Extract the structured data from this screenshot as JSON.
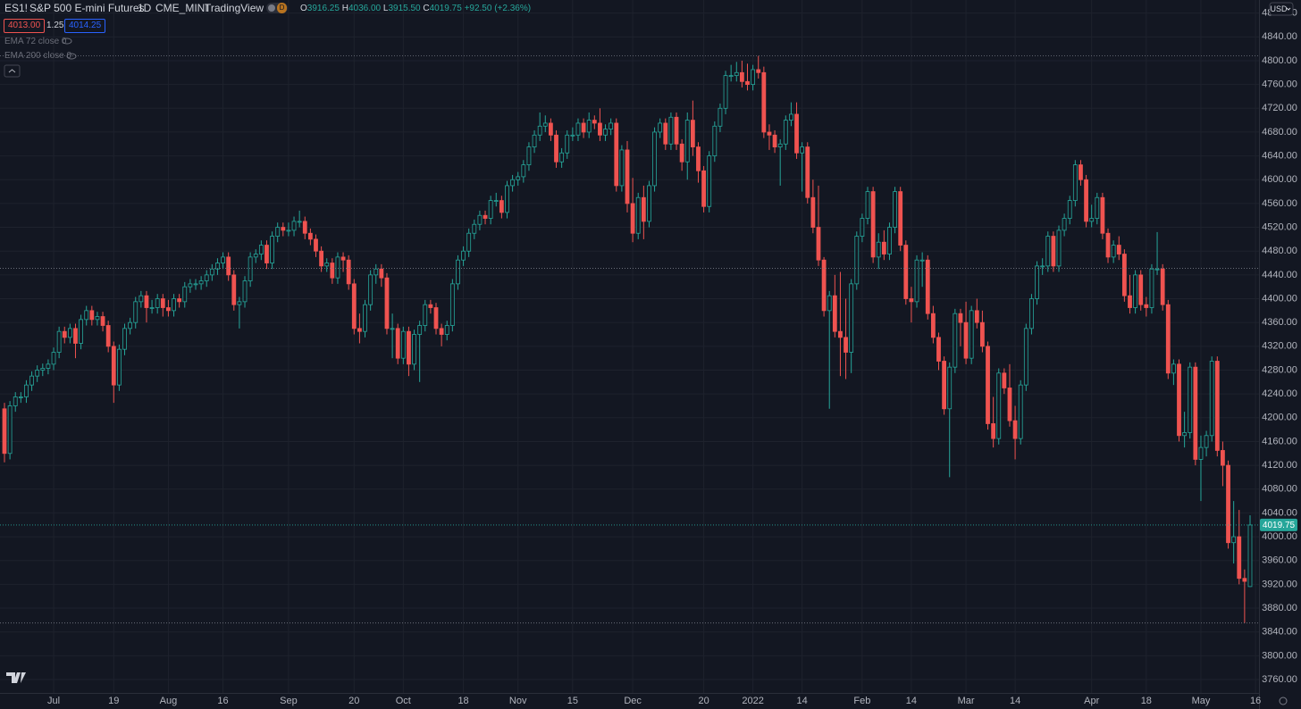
{
  "header": {
    "symbol": "ES1!",
    "name": "S&P 500 E-mini Futures",
    "interval": "1D",
    "exchange": "CME_MINI",
    "source": "TradingView",
    "badge": "D",
    "ohlc_labels": [
      "O",
      "H",
      "L",
      "C"
    ],
    "ohlc_values": [
      "3916.25",
      "4036.00",
      "3915.50",
      "4019.75"
    ],
    "change": "+92.50 (+2.36%)"
  },
  "trade_panel": {
    "sell": "4013.00",
    "spread": "1.25",
    "buy": "4014.25"
  },
  "indicators": [
    "EMA 72 close 0",
    "EMA 200 close 0"
  ],
  "currency": "USD",
  "chart_data": {
    "type": "candlestick",
    "up_color": "#26a69a",
    "down_color": "#ef5350",
    "hollow_up": true,
    "grid": true,
    "hline": 4451,
    "ylim": [
      3737.5,
      4902
    ],
    "yticks": [
      {
        "value": 3760,
        "label": "3760.00"
      },
      {
        "value": 3800,
        "label": "3800.00"
      },
      {
        "value": 3840,
        "label": "3840.00"
      },
      {
        "value": 3880,
        "label": "3880.00"
      },
      {
        "value": 3920,
        "label": "3920.00"
      },
      {
        "value": 3960,
        "label": "3960.00"
      },
      {
        "value": 4000,
        "label": "4000.00"
      },
      {
        "value": 4040,
        "label": "4040.00"
      },
      {
        "value": 4080,
        "label": "4080.00"
      },
      {
        "value": 4120,
        "label": "4120.00"
      },
      {
        "value": 4160,
        "label": "4160.00"
      },
      {
        "value": 4200,
        "label": "4200.00"
      },
      {
        "value": 4240,
        "label": "4240.00"
      },
      {
        "value": 4280,
        "label": "4280.00"
      },
      {
        "value": 4320,
        "label": "4320.00"
      },
      {
        "value": 4360,
        "label": "4360.00"
      },
      {
        "value": 4400,
        "label": "4400.00"
      },
      {
        "value": 4440,
        "label": "4440.00"
      },
      {
        "value": 4480,
        "label": "4480.00"
      },
      {
        "value": 4520,
        "label": "4520.00"
      },
      {
        "value": 4560,
        "label": "4560.00"
      },
      {
        "value": 4600,
        "label": "4600.00"
      },
      {
        "value": 4640,
        "label": "4640.00"
      },
      {
        "value": 4680,
        "label": "4680.00"
      },
      {
        "value": 4720,
        "label": "4720.00"
      },
      {
        "value": 4760,
        "label": "4760.00"
      },
      {
        "value": 4800,
        "label": "4800.00"
      },
      {
        "value": 4840,
        "label": "4840.00"
      },
      {
        "value": 4880,
        "label": "4880.00"
      }
    ],
    "categories": [
      null,
      null,
      null,
      null,
      null,
      null,
      null,
      null,
      null,
      "Jul",
      null,
      null,
      null,
      null,
      null,
      null,
      null,
      null,
      null,
      null,
      "19",
      null,
      null,
      null,
      null,
      null,
      null,
      null,
      null,
      null,
      "Aug",
      null,
      null,
      null,
      null,
      null,
      null,
      null,
      null,
      null,
      "16",
      null,
      null,
      null,
      null,
      null,
      null,
      null,
      null,
      null,
      null,
      null,
      "Sep",
      null,
      null,
      null,
      null,
      null,
      null,
      null,
      null,
      null,
      null,
      null,
      "20",
      null,
      null,
      null,
      null,
      null,
      null,
      null,
      null,
      "Oct",
      null,
      null,
      null,
      null,
      null,
      null,
      null,
      null,
      null,
      null,
      "18",
      null,
      null,
      null,
      null,
      null,
      null,
      null,
      null,
      null,
      "Nov",
      null,
      null,
      null,
      null,
      null,
      null,
      null,
      null,
      null,
      "15",
      null,
      null,
      null,
      null,
      null,
      null,
      null,
      null,
      null,
      null,
      "Dec",
      null,
      null,
      null,
      null,
      null,
      null,
      null,
      null,
      null,
      null,
      null,
      null,
      "20",
      null,
      null,
      null,
      null,
      null,
      null,
      null,
      null,
      "2022",
      null,
      null,
      null,
      null,
      null,
      null,
      null,
      null,
      "14",
      null,
      null,
      null,
      null,
      null,
      null,
      null,
      null,
      null,
      null,
      "Feb",
      null,
      null,
      null,
      null,
      null,
      null,
      null,
      null,
      "14",
      null,
      null,
      null,
      null,
      null,
      null,
      null,
      null,
      null,
      "Mar",
      null,
      null,
      null,
      null,
      null,
      null,
      null,
      null,
      "14",
      null,
      null,
      null,
      null,
      null,
      null,
      null,
      null,
      null,
      null,
      null,
      null,
      null,
      "Apr",
      null,
      null,
      null,
      null,
      null,
      null,
      null,
      null,
      null,
      "18",
      null,
      null,
      null,
      null,
      null,
      null,
      null,
      null,
      null,
      "May",
      null,
      null,
      null,
      null,
      null,
      null,
      null,
      null,
      null,
      "16"
    ],
    "open": [
      4215,
      4140,
      4220,
      4235,
      4235,
      4255,
      4270,
      4280,
      4283,
      4290,
      4310,
      4345,
      4335,
      4350,
      4325,
      4365,
      4380,
      4365,
      4370,
      4355,
      4320,
      4255,
      4315,
      4350,
      4360,
      4395,
      4405,
      4385,
      4385,
      4400,
      4385,
      4380,
      4400,
      4395,
      4420,
      4425,
      4425,
      4430,
      4440,
      4450,
      4460,
      4470,
      4440,
      4390,
      4395,
      4430,
      4470,
      4475,
      4490,
      4460,
      4505,
      4520,
      4515,
      4515,
      4530,
      4530,
      4510,
      4500,
      4480,
      4455,
      4460,
      4435,
      4470,
      4465,
      4425,
      4350,
      4345,
      4390,
      4440,
      4450,
      4435,
      4350,
      4350,
      4300,
      4345,
      4290,
      4340,
      4355,
      4390,
      4385,
      4350,
      4340,
      4355,
      4425,
      4465,
      4480,
      4510,
      4525,
      4540,
      4535,
      4565,
      4565,
      4545,
      4590,
      4600,
      4605,
      4625,
      4655,
      4675,
      4690,
      4695,
      4675,
      4630,
      4645,
      4675,
      4675,
      4695,
      4680,
      4700,
      4695,
      4675,
      4685,
      4695,
      4590,
      4650,
      4560,
      4510,
      4570,
      4530,
      4590,
      4680,
      4695,
      4660,
      4705,
      4660,
      4630,
      4700,
      4655,
      4615,
      4555,
      4640,
      4690,
      4720,
      4775,
      4775,
      4780,
      4765,
      4760,
      4785,
      4780,
      4680,
      4675,
      4655,
      4660,
      4700,
      4710,
      4645,
      4655,
      4570,
      4520,
      4465,
      4380,
      4405,
      4345,
      4335,
      4310,
      4425,
      4505,
      4535,
      4580,
      4470,
      4495,
      4475,
      4520,
      4580,
      4490,
      4400,
      4395,
      4465,
      4465,
      4375,
      4335,
      4295,
      4215,
      4285,
      4375,
      4360,
      4300,
      4380,
      4360,
      4320,
      4190,
      4165,
      4275,
      4250,
      4195,
      4165,
      4255,
      4350,
      4400,
      4455,
      4455,
      4505,
      4455,
      4515,
      4535,
      4565,
      4625,
      4600,
      4530,
      4535,
      4570,
      4510,
      4470,
      4490,
      4475,
      4405,
      4385,
      4440,
      4390,
      4385,
      4450,
      4450,
      4390,
      4275,
      4290,
      4170,
      4175,
      4285,
      4130,
      4150,
      4170,
      4295,
      4145,
      4120,
      3990,
      4000,
      3930,
      3916.25,
      null
    ],
    "high": [
      4225,
      4228,
      4243,
      4243,
      4263,
      4278,
      4288,
      4291,
      4298,
      4318,
      4353,
      4353,
      4358,
      4358,
      4373,
      4388,
      4388,
      4378,
      4378,
      4363,
      4328,
      4323,
      4358,
      4368,
      4403,
      4413,
      4413,
      4398,
      4408,
      4408,
      4398,
      4408,
      4408,
      4428,
      4433,
      4433,
      4438,
      4448,
      4458,
      4468,
      4478,
      4478,
      4448,
      4403,
      4438,
      4478,
      4483,
      4498,
      4498,
      4513,
      4528,
      4528,
      4528,
      4538,
      4548,
      4538,
      4518,
      4508,
      4488,
      4468,
      4468,
      4478,
      4478,
      4473,
      4433,
      4375,
      4398,
      4448,
      4458,
      4458,
      4443,
      4375,
      4358,
      4353,
      4353,
      4348,
      4363,
      4398,
      4398,
      4393,
      4358,
      4363,
      4433,
      4473,
      4488,
      4518,
      4533,
      4548,
      4548,
      4573,
      4578,
      4573,
      4598,
      4608,
      4613,
      4633,
      4663,
      4683,
      4713,
      4708,
      4703,
      4683,
      4653,
      4683,
      4688,
      4703,
      4703,
      4713,
      4708,
      4720,
      4693,
      4703,
      4703,
      4658,
      4665,
      4603,
      4578,
      4590,
      4598,
      4688,
      4703,
      4703,
      4713,
      4713,
      4668,
      4713,
      4733,
      4663,
      4623,
      4648,
      4698,
      4728,
      4783,
      4793,
      4798,
      4800,
      4795,
      4793,
      4808,
      4790,
      4693,
      4683,
      4668,
      4708,
      4730,
      4730,
      4663,
      4663,
      4600,
      4590,
      4470,
      4413,
      4440,
      4445,
      4400,
      4433,
      4513,
      4543,
      4588,
      4588,
      4510,
      4515,
      4528,
      4588,
      4588,
      4498,
      4420,
      4473,
      4478,
      4473,
      4388,
      4343,
      4303,
      4293,
      4383,
      4383,
      4395,
      4388,
      4400,
      4380,
      4328,
      4235,
      4283,
      4283,
      4290,
      4220,
      4263,
      4358,
      4408,
      4463,
      4468,
      4513,
      4513,
      4523,
      4543,
      4573,
      4633,
      4633,
      4608,
      4558,
      4578,
      4578,
      4518,
      4498,
      4505,
      4483,
      4440,
      4448,
      4448,
      4403,
      4458,
      4512,
      4458,
      4398,
      4298,
      4298,
      4210,
      4293,
      4293,
      4170,
      4178,
      4303,
      4303,
      4160,
      4128,
      4060,
      4045,
      3945,
      4036,
      null
    ],
    "low": [
      4125,
      4130,
      4210,
      4225,
      4225,
      4245,
      4260,
      4270,
      4273,
      4280,
      4300,
      4325,
      4325,
      4300,
      4315,
      4355,
      4355,
      4355,
      4345,
      4310,
      4225,
      4245,
      4305,
      4340,
      4350,
      4385,
      4360,
      4375,
      4375,
      4370,
      4370,
      4370,
      4385,
      4385,
      4410,
      4415,
      4415,
      4420,
      4430,
      4440,
      4450,
      4430,
      4380,
      4350,
      4385,
      4420,
      4460,
      4465,
      4450,
      4450,
      4495,
      4505,
      4505,
      4505,
      4520,
      4500,
      4490,
      4470,
      4445,
      4445,
      4425,
      4425,
      4445,
      4415,
      4340,
      4325,
      4335,
      4380,
      4425,
      4420,
      4340,
      4300,
      4290,
      4290,
      4270,
      4280,
      4260,
      4345,
      4375,
      4340,
      4320,
      4330,
      4345,
      4415,
      4455,
      4470,
      4500,
      4515,
      4525,
      4525,
      4555,
      4535,
      4535,
      4580,
      4590,
      4595,
      4615,
      4645,
      4665,
      4680,
      4665,
      4620,
      4620,
      4635,
      4665,
      4665,
      4670,
      4670,
      4685,
      4665,
      4665,
      4675,
      4580,
      4580,
      4545,
      4495,
      4500,
      4500,
      4520,
      4580,
      4670,
      4650,
      4650,
      4650,
      4615,
      4600,
      4640,
      4595,
      4545,
      4545,
      4630,
      4680,
      4710,
      4765,
      4765,
      4755,
      4750,
      4750,
      4770,
      4670,
      4650,
      4645,
      4590,
      4650,
      4690,
      4635,
      4580,
      4560,
      4510,
      4455,
      4370,
      4215,
      4335,
      4270,
      4265,
      4275,
      4415,
      4495,
      4525,
      4460,
      4450,
      4465,
      4465,
      4510,
      4480,
      4390,
      4360,
      4385,
      4420,
      4365,
      4325,
      4280,
      4205,
      4100,
      4275,
      4320,
      4290,
      4290,
      4350,
      4310,
      4180,
      4150,
      4155,
      4240,
      4185,
      4130,
      4155,
      4245,
      4340,
      4390,
      4440,
      4445,
      4445,
      4445,
      4505,
      4525,
      4555,
      4590,
      4520,
      4520,
      4525,
      4500,
      4460,
      4460,
      4465,
      4395,
      4375,
      4375,
      4380,
      4370,
      4375,
      4440,
      4380,
      4265,
      4255,
      4160,
      4150,
      4165,
      4120,
      4060,
      4135,
      4160,
      4135,
      4085,
      3980,
      3955,
      3920,
      3855,
      3915.5,
      null
    ],
    "close": [
      4140,
      4220,
      4235,
      4235,
      4255,
      4270,
      4280,
      4283,
      4290,
      4310,
      4345,
      4335,
      4350,
      4325,
      4365,
      4380,
      4365,
      4370,
      4355,
      4320,
      4255,
      4315,
      4350,
      4360,
      4395,
      4405,
      4385,
      4385,
      4400,
      4385,
      4380,
      4400,
      4395,
      4420,
      4425,
      4425,
      4430,
      4440,
      4450,
      4460,
      4470,
      4440,
      4390,
      4395,
      4430,
      4470,
      4475,
      4490,
      4460,
      4505,
      4520,
      4515,
      4515,
      4530,
      4530,
      4510,
      4500,
      4480,
      4455,
      4460,
      4435,
      4470,
      4465,
      4425,
      4350,
      4345,
      4390,
      4440,
      4450,
      4435,
      4350,
      4350,
      4300,
      4345,
      4290,
      4340,
      4355,
      4390,
      4385,
      4350,
      4340,
      4355,
      4425,
      4465,
      4480,
      4510,
      4525,
      4540,
      4535,
      4565,
      4565,
      4545,
      4590,
      4600,
      4605,
      4625,
      4655,
      4675,
      4690,
      4695,
      4675,
      4630,
      4645,
      4675,
      4675,
      4695,
      4680,
      4700,
      4695,
      4675,
      4685,
      4695,
      4590,
      4650,
      4560,
      4510,
      4570,
      4530,
      4590,
      4680,
      4695,
      4660,
      4705,
      4660,
      4630,
      4700,
      4655,
      4615,
      4555,
      4640,
      4690,
      4720,
      4775,
      4775,
      4780,
      4765,
      4760,
      4785,
      4780,
      4680,
      4675,
      4655,
      4660,
      4700,
      4710,
      4645,
      4655,
      4570,
      4520,
      4465,
      4380,
      4405,
      4345,
      4335,
      4310,
      4425,
      4505,
      4535,
      4580,
      4470,
      4495,
      4475,
      4520,
      4580,
      4490,
      4400,
      4395,
      4465,
      4465,
      4375,
      4335,
      4295,
      4215,
      4285,
      4375,
      4360,
      4300,
      4380,
      4360,
      4320,
      4190,
      4165,
      4275,
      4250,
      4195,
      4165,
      4255,
      4350,
      4400,
      4455,
      4455,
      4505,
      4455,
      4515,
      4535,
      4565,
      4625,
      4600,
      4530,
      4535,
      4570,
      4510,
      4470,
      4490,
      4475,
      4405,
      4385,
      4440,
      4390,
      4385,
      4450,
      4450,
      4390,
      4275,
      4290,
      4170,
      4175,
      4285,
      4130,
      4150,
      4170,
      4295,
      4145,
      4120,
      3990,
      4000,
      3930,
      3925,
      4019.75,
      null
    ]
  }
}
